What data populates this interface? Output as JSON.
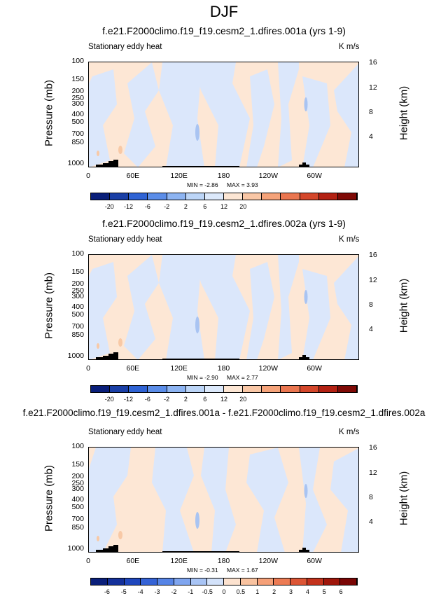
{
  "page_title": "DJF",
  "chart_data": [
    {
      "type": "heatmap",
      "title": "f.e21.F2000climo.f19_f19.cesm2_1.dfires.001a (yrs 1-9)",
      "field_label": "Stationary eddy heat",
      "units": "K m/s",
      "ylabel": "Pressure (mb)",
      "ylabel_right": "Height (km)",
      "y_ticks": [
        "100",
        "150",
        "200",
        "250",
        "300",
        "400",
        "500",
        "700",
        "850",
        "1000"
      ],
      "y_right_ticks": [
        "16",
        "12",
        "8",
        "4"
      ],
      "x_ticks": [
        "0",
        "60E",
        "120E",
        "180",
        "120W",
        "60W"
      ],
      "min_label": "MIN = -2.86",
      "max_label": "MAX = 3.93",
      "colorbar_ticks": [
        "-20",
        "-12",
        "-6",
        "-2",
        "2",
        "6",
        "12",
        "20"
      ]
    },
    {
      "type": "heatmap",
      "title": "f.e21.F2000climo.f19_f19.cesm2_1.dfires.002a (yrs 1-9)",
      "field_label": "Stationary eddy heat",
      "units": "K m/s",
      "ylabel": "Pressure (mb)",
      "ylabel_right": "Height (km)",
      "y_ticks": [
        "100",
        "150",
        "200",
        "250",
        "300",
        "400",
        "500",
        "700",
        "850",
        "1000"
      ],
      "y_right_ticks": [
        "16",
        "12",
        "8",
        "4"
      ],
      "x_ticks": [
        "0",
        "60E",
        "120E",
        "180",
        "120W",
        "60W"
      ],
      "min_label": "MIN = -2.90",
      "max_label": "MAX = 2.77",
      "colorbar_ticks": [
        "-20",
        "-12",
        "-6",
        "-2",
        "2",
        "6",
        "12",
        "20"
      ]
    },
    {
      "type": "heatmap",
      "title": "f.e21.F2000climo.f19_f19.cesm2_1.dfires.001a - f.e21.F2000climo.f19_f19.cesm2_1.dfires.002a",
      "field_label": "Stationary eddy heat",
      "units": "K m/s",
      "ylabel": "Pressure (mb)",
      "ylabel_right": "Height (km)",
      "y_ticks": [
        "100",
        "150",
        "200",
        "250",
        "300",
        "400",
        "500",
        "700",
        "850",
        "1000"
      ],
      "y_right_ticks": [
        "16",
        "12",
        "8",
        "4"
      ],
      "x_ticks": [
        "0",
        "60E",
        "120E",
        "180",
        "120W",
        "60W"
      ],
      "min_label": "MIN = -0.31",
      "max_label": "MAX = 1.67",
      "colorbar_ticks": [
        "-6",
        "-5",
        "-4",
        "-3",
        "-2",
        "-1",
        "-0.5",
        "0",
        "0.5",
        "1",
        "2",
        "3",
        "4",
        "5",
        "6"
      ]
    }
  ],
  "colors": {
    "colorbar_abs": [
      "#0a1f7a",
      "#1a3fa6",
      "#2f63d4",
      "#5b8de8",
      "#8db4f2",
      "#bcd5f7",
      "#dce9fb",
      "#fce6d4",
      "#f9c7a6",
      "#f5a37a",
      "#ea7650",
      "#d4472b",
      "#b32113",
      "#7f0a06"
    ],
    "colorbar_diff": [
      "#0a1f7a",
      "#14309a",
      "#1f47bd",
      "#3563d6",
      "#5684e6",
      "#7fa5ef",
      "#a8c4f5",
      "#d3e2fa",
      "#fce2cf",
      "#f9c3a0",
      "#f5a078",
      "#ec7b54",
      "#dc5535",
      "#c3321c",
      "#9f160b",
      "#7a0605"
    ],
    "blue_field": "#dbe7fb",
    "orange_field": "#fde7d5",
    "deep_blue": "#a9c4f2",
    "deep_orange": "#f8c9a6",
    "topography": "#000000"
  }
}
